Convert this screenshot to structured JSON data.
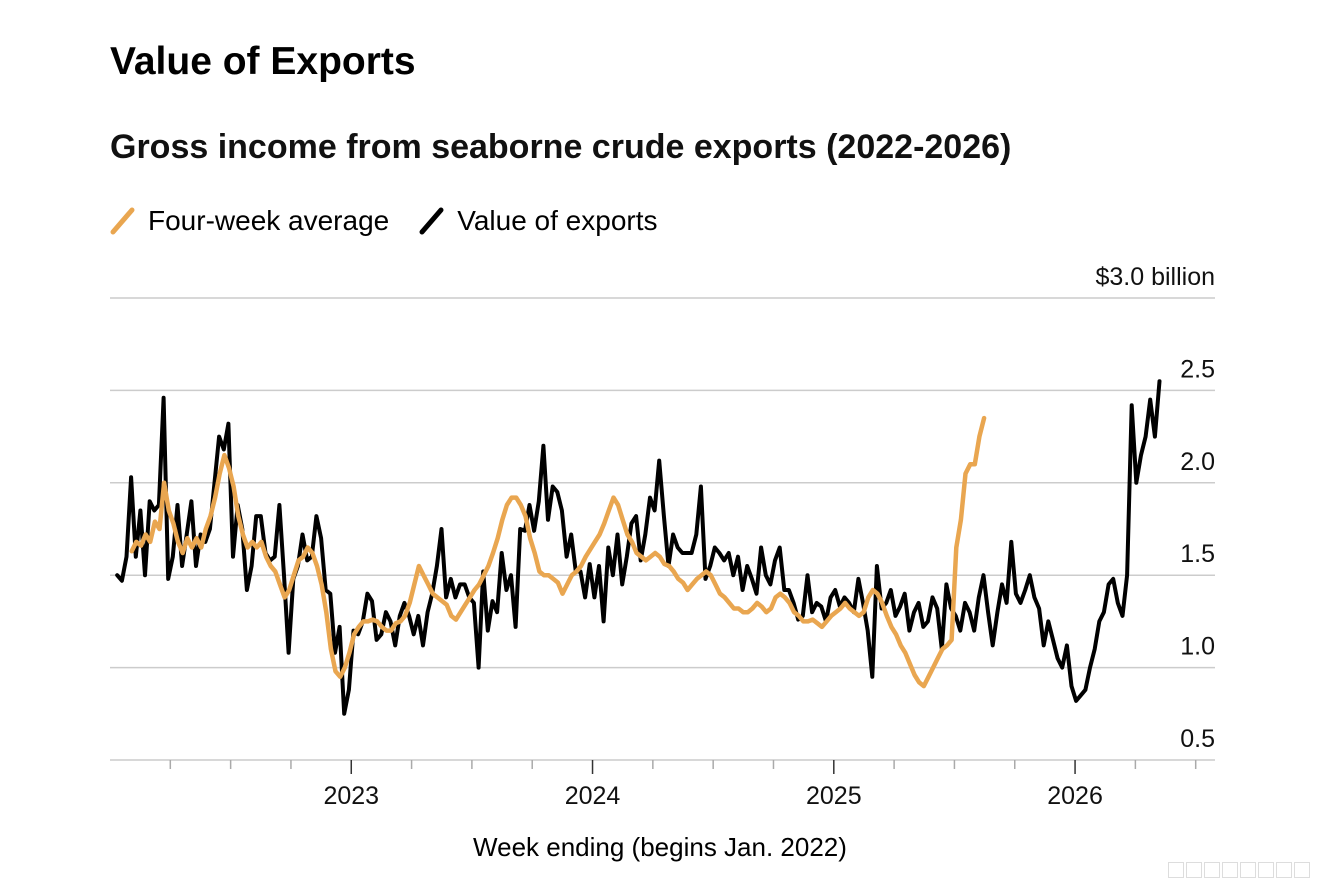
{
  "header": {
    "title": "Value of Exports",
    "subtitle": "Gross income from seaborne crude exports (2022-2026)"
  },
  "legend": {
    "items": [
      {
        "label": "Four-week average",
        "color": "#E9A650"
      },
      {
        "label": "Value of exports",
        "color": "#000000"
      }
    ]
  },
  "colors": {
    "average": "#E9A650",
    "value": "#000000",
    "grid": "#cccccc"
  },
  "chart_data": {
    "type": "line",
    "title": "Value of Exports",
    "subtitle": "Gross income from seaborne crude exports (2022-2026)",
    "xlabel": "Week ending (begins Jan. 2022)",
    "ylabel": "",
    "ylim": [
      0.5,
      3.0
    ],
    "yticks": [
      0.5,
      1.0,
      1.5,
      2.0,
      2.5,
      3.0
    ],
    "ytick_labels": [
      "0.5",
      "1.0",
      "1.5",
      "2.0",
      "2.5",
      "$3.0 billion"
    ],
    "xlim": [
      2022.0,
      2026.58
    ],
    "xticks": [
      2023,
      2024,
      2025,
      2026
    ],
    "xtick_labels": [
      "2023",
      "2024",
      "2025",
      "2026"
    ],
    "grid": true,
    "legend_position": "top-left",
    "series": [
      {
        "name": "Value of exports",
        "x_start": 2022.03,
        "x_step": 0.0192,
        "values": [
          1.5,
          1.47,
          1.6,
          2.03,
          1.6,
          1.85,
          1.5,
          1.9,
          1.85,
          1.88,
          2.46,
          1.48,
          1.6,
          1.88,
          1.55,
          1.72,
          1.9,
          1.55,
          1.72,
          1.68,
          1.75,
          2.0,
          2.25,
          2.18,
          2.32,
          1.6,
          1.88,
          1.75,
          1.42,
          1.55,
          1.82,
          1.82,
          1.62,
          1.58,
          1.6,
          1.88,
          1.5,
          1.08,
          1.48,
          1.55,
          1.72,
          1.58,
          1.6,
          1.82,
          1.7,
          1.42,
          1.4,
          1.08,
          1.22,
          0.75,
          0.88,
          1.2,
          1.18,
          1.25,
          1.4,
          1.36,
          1.15,
          1.18,
          1.3,
          1.25,
          1.12,
          1.28,
          1.35,
          1.28,
          1.18,
          1.28,
          1.12,
          1.3,
          1.4,
          1.55,
          1.75,
          1.38,
          1.48,
          1.38,
          1.45,
          1.45,
          1.38,
          1.35,
          1.0,
          1.52,
          1.2,
          1.36,
          1.3,
          1.62,
          1.42,
          1.5,
          1.22,
          1.75,
          1.74,
          1.88,
          1.74,
          1.9,
          2.2,
          1.8,
          1.98,
          1.95,
          1.85,
          1.6,
          1.72,
          1.52,
          1.52,
          1.38,
          1.56,
          1.38,
          1.55,
          1.25,
          1.65,
          1.5,
          1.72,
          1.45,
          1.6,
          1.78,
          1.82,
          1.58,
          1.72,
          1.92,
          1.85,
          2.12,
          1.82,
          1.55,
          1.72,
          1.65,
          1.62,
          1.62,
          1.62,
          1.72,
          1.98,
          1.48,
          1.55,
          1.65,
          1.62,
          1.58,
          1.62,
          1.5,
          1.6,
          1.42,
          1.55,
          1.48,
          1.4,
          1.65,
          1.5,
          1.45,
          1.58,
          1.65,
          1.42,
          1.42,
          1.35,
          1.26,
          1.28,
          1.5,
          1.3,
          1.35,
          1.33,
          1.25,
          1.38,
          1.42,
          1.33,
          1.38,
          1.35,
          1.3,
          1.48,
          1.35,
          1.2,
          0.95,
          1.55,
          1.32,
          1.35,
          1.42,
          1.28,
          1.33,
          1.4,
          1.2,
          1.3,
          1.35,
          1.22,
          1.25,
          1.38,
          1.32,
          1.1,
          1.45,
          1.32,
          1.28,
          1.2,
          1.35,
          1.3,
          1.2,
          1.38,
          1.5,
          1.3,
          1.12,
          1.3,
          1.45,
          1.35,
          1.68,
          1.4,
          1.35,
          1.42,
          1.5,
          1.38,
          1.32,
          1.12,
          1.25,
          1.15,
          1.05,
          1.0,
          1.12,
          0.9,
          0.82,
          0.85,
          0.88,
          1.0,
          1.1,
          1.25,
          1.3,
          1.45,
          1.48,
          1.35,
          1.28,
          1.5,
          2.42,
          2.0,
          2.15,
          2.25,
          2.45,
          2.25,
          2.55
        ],
        "color": "#000000"
      },
      {
        "name": "Four-week average",
        "x_start": 2022.09,
        "x_step": 0.0192,
        "values": [
          1.63,
          1.68,
          1.66,
          1.72,
          1.68,
          1.79,
          1.75,
          2.0,
          1.85,
          1.78,
          1.68,
          1.62,
          1.7,
          1.65,
          1.7,
          1.65,
          1.75,
          1.82,
          1.92,
          2.05,
          2.15,
          2.08,
          1.98,
          1.82,
          1.72,
          1.65,
          1.68,
          1.65,
          1.68,
          1.6,
          1.55,
          1.52,
          1.45,
          1.38,
          1.42,
          1.5,
          1.58,
          1.6,
          1.65,
          1.62,
          1.55,
          1.45,
          1.3,
          1.1,
          0.98,
          0.95,
          1.0,
          1.08,
          1.18,
          1.22,
          1.25,
          1.25,
          1.26,
          1.25,
          1.22,
          1.2,
          1.2,
          1.24,
          1.25,
          1.28,
          1.35,
          1.45,
          1.55,
          1.5,
          1.45,
          1.4,
          1.38,
          1.36,
          1.34,
          1.28,
          1.26,
          1.3,
          1.34,
          1.38,
          1.42,
          1.45,
          1.5,
          1.55,
          1.62,
          1.7,
          1.8,
          1.88,
          1.92,
          1.92,
          1.88,
          1.82,
          1.7,
          1.62,
          1.52,
          1.5,
          1.5,
          1.48,
          1.46,
          1.4,
          1.45,
          1.5,
          1.52,
          1.55,
          1.6,
          1.64,
          1.68,
          1.72,
          1.78,
          1.85,
          1.92,
          1.88,
          1.8,
          1.72,
          1.68,
          1.62,
          1.6,
          1.58,
          1.6,
          1.62,
          1.6,
          1.56,
          1.55,
          1.52,
          1.48,
          1.46,
          1.42,
          1.45,
          1.48,
          1.5,
          1.52,
          1.5,
          1.45,
          1.4,
          1.38,
          1.35,
          1.32,
          1.32,
          1.3,
          1.3,
          1.32,
          1.35,
          1.33,
          1.3,
          1.32,
          1.38,
          1.4,
          1.38,
          1.35,
          1.3,
          1.28,
          1.25,
          1.25,
          1.26,
          1.24,
          1.22,
          1.25,
          1.28,
          1.3,
          1.32,
          1.35,
          1.32,
          1.3,
          1.28,
          1.3,
          1.38,
          1.42,
          1.4,
          1.35,
          1.28,
          1.22,
          1.18,
          1.12,
          1.08,
          1.02,
          0.96,
          0.92,
          0.9,
          0.95,
          1.0,
          1.05,
          1.1,
          1.12,
          1.15,
          1.65,
          1.8,
          2.05,
          2.1,
          2.1,
          2.25,
          2.35
        ],
        "color": "#E9A650"
      }
    ]
  }
}
